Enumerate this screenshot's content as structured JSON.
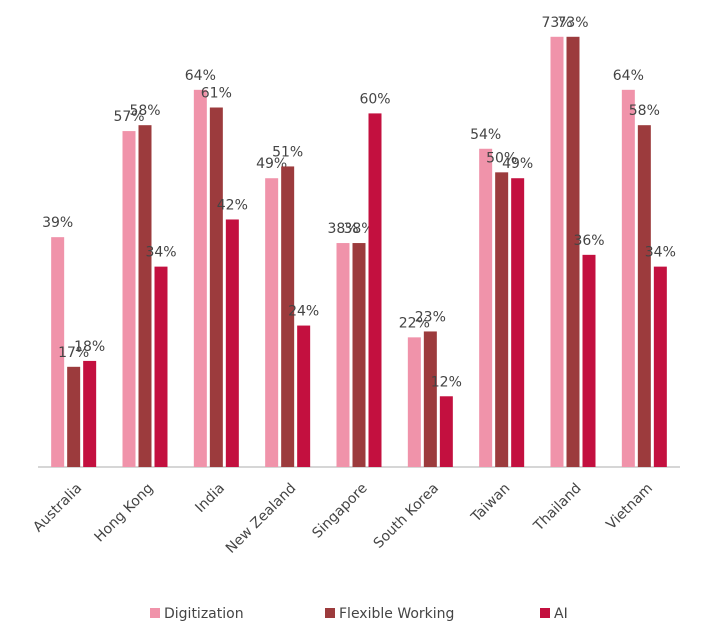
{
  "chart_data": {
    "type": "bar",
    "categories": [
      "Australia",
      "Hong Kong",
      "India",
      "New Zealand",
      "Singapore",
      "South Korea",
      "Taiwan",
      "Thailand",
      "Vietnam"
    ],
    "series": [
      {
        "name": "Digitization",
        "color": "#f093aa",
        "values": [
          39,
          57,
          64,
          49,
          38,
          22,
          54,
          73,
          64
        ],
        "value_labels": [
          "39%",
          "57%",
          "64%",
          "49%",
          "38%",
          "22%",
          "54%",
          "73%",
          "64%"
        ]
      },
      {
        "name": "Flexible Working",
        "color": "#9c3b3d",
        "values": [
          17,
          58,
          61,
          51,
          38,
          23,
          50,
          73,
          58
        ],
        "value_labels": [
          "17%",
          "58%",
          "61%",
          "51%",
          "38%",
          "23%",
          "50%",
          "73%",
          "58%"
        ]
      },
      {
        "name": "AI",
        "color": "#c3103f",
        "values": [
          18,
          34,
          42,
          24,
          60,
          12,
          49,
          36,
          34
        ],
        "value_labels": [
          "18%",
          "34%",
          "42%",
          "24%",
          "60%",
          "12%",
          "49%",
          "36%",
          "34%"
        ]
      }
    ],
    "ylim": [
      0,
      75
    ]
  }
}
